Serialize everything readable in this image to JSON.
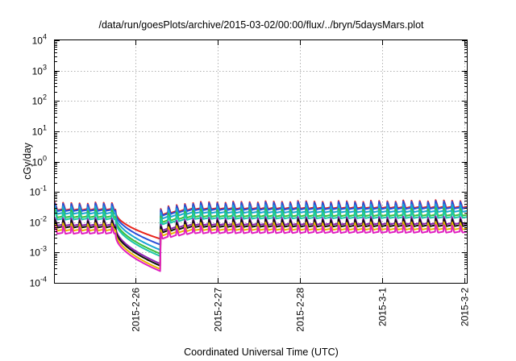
{
  "chart_data": {
    "type": "line",
    "title": "/data/run/goesPlots/archive/2015-03-02/00:00/flux/../bryn/5daysMars.plot",
    "xlabel": "Coordinated Universal Time (UTC)",
    "ylabel": "cGy/day",
    "yscale": "log",
    "ylim": [
      0.0001,
      10000
    ],
    "xlim": [
      0,
      5.06
    ],
    "x_unit": "days since 2015-02-25 03:00 UTC (plot start)",
    "grid": true,
    "y_ticks": [
      {
        "mant": "10",
        "exp": "-4",
        "value": 0.0001
      },
      {
        "mant": "10",
        "exp": "-3",
        "value": 0.001
      },
      {
        "mant": "10",
        "exp": "-2",
        "value": 0.01
      },
      {
        "mant": "10",
        "exp": "-1",
        "value": 0.1
      },
      {
        "mant": "10",
        "exp": "0",
        "value": 1
      },
      {
        "mant": "10",
        "exp": "1",
        "value": 10
      },
      {
        "mant": "10",
        "exp": "2",
        "value": 100
      },
      {
        "mant": "10",
        "exp": "3",
        "value": 1000
      },
      {
        "mant": "10",
        "exp": "4",
        "value": 10000
      }
    ],
    "x_ticks": [
      {
        "label": "2015-2-26",
        "x": 0.99
      },
      {
        "label": "2015-2-27",
        "x": 2.0
      },
      {
        "label": "2015-2-28",
        "x": 3.01
      },
      {
        "label": "2015-3-1",
        "x": 4.02
      },
      {
        "label": "2015-3-2",
        "x": 5.03
      }
    ],
    "sawtooth": {
      "cycle_days": 0.0995,
      "baseline_ratio": 0.55,
      "decay_fraction": 0.3
    },
    "event": {
      "dip_start": 0.75,
      "dip_end": 1.3,
      "recovery": 1.7
    },
    "series": [
      {
        "color": "#e8241c",
        "peak": 0.045,
        "floor": 0.0028,
        "rise": 1.22
      },
      {
        "color": "#2a4fd8",
        "peak": 0.042,
        "floor": 0.0018,
        "rise": 1.22
      },
      {
        "color": "#1aa3d6",
        "peak": 0.034,
        "floor": 0.0012,
        "rise": 1.18
      },
      {
        "color": "#3cbf3c",
        "peak": 0.026,
        "floor": 0.0009,
        "rise": 1.15
      },
      {
        "color": "#1cc6a8",
        "peak": 0.022,
        "floor": 0.00075,
        "rise": 1.15
      },
      {
        "color": "#8b1fb2",
        "peak": 0.014,
        "floor": 0.00042,
        "rise": 1.12
      },
      {
        "color": "#111111",
        "peak": 0.012,
        "floor": 0.00036,
        "rise": 1.12
      },
      {
        "color": "#e6b800",
        "peak": 0.0095,
        "floor": 0.00028,
        "rise": 1.1
      },
      {
        "color": "#e020c0",
        "peak": 0.0075,
        "floor": 0.00024,
        "rise": 1.1
      }
    ]
  }
}
